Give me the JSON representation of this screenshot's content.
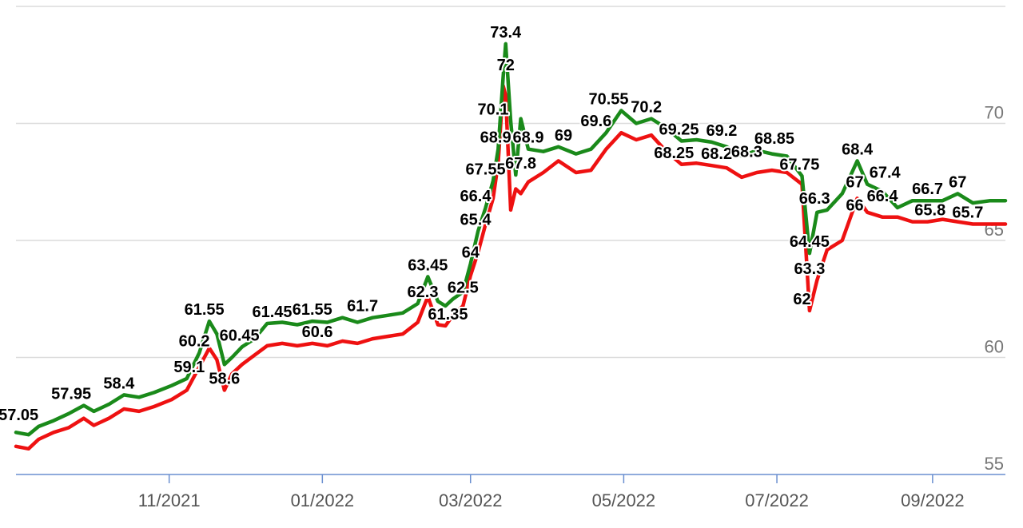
{
  "chart_data": {
    "type": "line",
    "x_start": "2021-09-01",
    "x_end": "2022-09-30",
    "y_ticks": [
      55,
      60,
      65,
      70
    ],
    "ylim": [
      55,
      75
    ],
    "grid": true,
    "x_ticks": [
      {
        "date": "2021-11-01",
        "label": "11/2021"
      },
      {
        "date": "2022-01-01",
        "label": "01/2022"
      },
      {
        "date": "2022-03-01",
        "label": "03/2022"
      },
      {
        "date": "2022-05-01",
        "label": "05/2022"
      },
      {
        "date": "2022-07-01",
        "label": "07/2022"
      },
      {
        "date": "2022-09-01",
        "label": "09/2022"
      }
    ],
    "colors": {
      "upper": "#1a8a1a",
      "lower": "#ee1111"
    },
    "series": [
      {
        "key": "upper",
        "color": "#1a8a1a",
        "points": [
          [
            "2021-09-01",
            56.8
          ],
          [
            "2021-09-06",
            56.7
          ],
          [
            "2021-09-10",
            57.05
          ],
          [
            "2021-09-16",
            57.3
          ],
          [
            "2021-09-22",
            57.6
          ],
          [
            "2021-09-28",
            57.95
          ],
          [
            "2021-10-02",
            57.7
          ],
          [
            "2021-10-08",
            58.0
          ],
          [
            "2021-10-14",
            58.4
          ],
          [
            "2021-10-20",
            58.3
          ],
          [
            "2021-10-26",
            58.5
          ],
          [
            "2021-11-02",
            58.8
          ],
          [
            "2021-11-08",
            59.1
          ],
          [
            "2021-11-13",
            60.2
          ],
          [
            "2021-11-17",
            61.55
          ],
          [
            "2021-11-20",
            61.0
          ],
          [
            "2021-11-23",
            59.7
          ],
          [
            "2021-11-26",
            60.0
          ],
          [
            "2021-11-30",
            60.45
          ],
          [
            "2021-12-05",
            60.8
          ],
          [
            "2021-12-10",
            61.45
          ],
          [
            "2021-12-16",
            61.5
          ],
          [
            "2021-12-22",
            61.4
          ],
          [
            "2021-12-28",
            61.55
          ],
          [
            "2022-01-03",
            61.5
          ],
          [
            "2022-01-09",
            61.7
          ],
          [
            "2022-01-15",
            61.5
          ],
          [
            "2022-01-21",
            61.7
          ],
          [
            "2022-01-27",
            61.8
          ],
          [
            "2022-02-02",
            61.9
          ],
          [
            "2022-02-08",
            62.3
          ],
          [
            "2022-02-12",
            63.45
          ],
          [
            "2022-02-16",
            62.4
          ],
          [
            "2022-02-19",
            62.2
          ],
          [
            "2022-02-22",
            62.5
          ],
          [
            "2022-02-26",
            62.8
          ],
          [
            "2022-03-01",
            64.0
          ],
          [
            "2022-03-04",
            65.4
          ],
          [
            "2022-03-07",
            66.4
          ],
          [
            "2022-03-10",
            67.55
          ],
          [
            "2022-03-12",
            68.9
          ],
          [
            "2022-03-14",
            72.0
          ],
          [
            "2022-03-15",
            73.4
          ],
          [
            "2022-03-17",
            70.1
          ],
          [
            "2022-03-19",
            67.8
          ],
          [
            "2022-03-21",
            70.2
          ],
          [
            "2022-03-24",
            68.9
          ],
          [
            "2022-03-30",
            68.8
          ],
          [
            "2022-04-05",
            69.0
          ],
          [
            "2022-04-12",
            68.7
          ],
          [
            "2022-04-18",
            68.9
          ],
          [
            "2022-04-24",
            69.6
          ],
          [
            "2022-04-30",
            70.55
          ],
          [
            "2022-05-06",
            70.0
          ],
          [
            "2022-05-12",
            70.2
          ],
          [
            "2022-05-18",
            69.8
          ],
          [
            "2022-05-24",
            69.25
          ],
          [
            "2022-05-30",
            69.3
          ],
          [
            "2022-06-05",
            69.2
          ],
          [
            "2022-06-11",
            69.0
          ],
          [
            "2022-06-17",
            68.6
          ],
          [
            "2022-06-23",
            68.85
          ],
          [
            "2022-06-29",
            68.7
          ],
          [
            "2022-07-05",
            68.6
          ],
          [
            "2022-07-11",
            67.75
          ],
          [
            "2022-07-14",
            64.45
          ],
          [
            "2022-07-17",
            66.2
          ],
          [
            "2022-07-21",
            66.3
          ],
          [
            "2022-07-27",
            67.0
          ],
          [
            "2022-08-02",
            68.4
          ],
          [
            "2022-08-06",
            67.4
          ],
          [
            "2022-08-12",
            67.1
          ],
          [
            "2022-08-18",
            66.4
          ],
          [
            "2022-08-24",
            66.7
          ],
          [
            "2022-08-30",
            66.7
          ],
          [
            "2022-09-05",
            66.7
          ],
          [
            "2022-09-11",
            67.0
          ],
          [
            "2022-09-17",
            66.6
          ],
          [
            "2022-09-24",
            66.7
          ],
          [
            "2022-09-30",
            66.7
          ]
        ]
      },
      {
        "key": "lower",
        "color": "#ee1111",
        "points": [
          [
            "2021-09-01",
            56.2
          ],
          [
            "2021-09-06",
            56.1
          ],
          [
            "2021-09-10",
            56.5
          ],
          [
            "2021-09-16",
            56.8
          ],
          [
            "2021-09-22",
            57.0
          ],
          [
            "2021-09-28",
            57.4
          ],
          [
            "2021-10-02",
            57.1
          ],
          [
            "2021-10-08",
            57.4
          ],
          [
            "2021-10-14",
            57.8
          ],
          [
            "2021-10-20",
            57.7
          ],
          [
            "2021-10-26",
            57.9
          ],
          [
            "2021-11-02",
            58.2
          ],
          [
            "2021-11-08",
            58.6
          ],
          [
            "2021-11-13",
            59.6
          ],
          [
            "2021-11-17",
            60.4
          ],
          [
            "2021-11-20",
            59.9
          ],
          [
            "2021-11-23",
            58.6
          ],
          [
            "2021-11-26",
            59.3
          ],
          [
            "2021-11-30",
            59.7
          ],
          [
            "2021-12-05",
            60.1
          ],
          [
            "2021-12-10",
            60.5
          ],
          [
            "2021-12-16",
            60.6
          ],
          [
            "2021-12-22",
            60.5
          ],
          [
            "2021-12-28",
            60.6
          ],
          [
            "2022-01-03",
            60.5
          ],
          [
            "2022-01-09",
            60.7
          ],
          [
            "2022-01-15",
            60.6
          ],
          [
            "2022-01-21",
            60.8
          ],
          [
            "2022-01-27",
            60.9
          ],
          [
            "2022-02-02",
            61.0
          ],
          [
            "2022-02-08",
            61.5
          ],
          [
            "2022-02-12",
            62.6
          ],
          [
            "2022-02-16",
            61.4
          ],
          [
            "2022-02-19",
            61.35
          ],
          [
            "2022-02-22",
            61.8
          ],
          [
            "2022-02-26",
            62.2
          ],
          [
            "2022-03-01",
            63.5
          ],
          [
            "2022-03-04",
            64.5
          ],
          [
            "2022-03-07",
            65.7
          ],
          [
            "2022-03-10",
            66.8
          ],
          [
            "2022-03-12",
            68.3
          ],
          [
            "2022-03-14",
            71.6
          ],
          [
            "2022-03-15",
            71.2
          ],
          [
            "2022-03-17",
            66.3
          ],
          [
            "2022-03-19",
            67.2
          ],
          [
            "2022-03-21",
            67.0
          ],
          [
            "2022-03-24",
            67.5
          ],
          [
            "2022-03-30",
            67.9
          ],
          [
            "2022-04-05",
            68.4
          ],
          [
            "2022-04-12",
            67.9
          ],
          [
            "2022-04-18",
            68.0
          ],
          [
            "2022-04-24",
            68.9
          ],
          [
            "2022-04-30",
            69.6
          ],
          [
            "2022-05-06",
            69.3
          ],
          [
            "2022-05-12",
            69.5
          ],
          [
            "2022-05-18",
            68.8
          ],
          [
            "2022-05-24",
            68.25
          ],
          [
            "2022-05-30",
            68.3
          ],
          [
            "2022-06-05",
            68.2
          ],
          [
            "2022-06-11",
            68.1
          ],
          [
            "2022-06-17",
            67.7
          ],
          [
            "2022-06-23",
            67.9
          ],
          [
            "2022-06-29",
            68.0
          ],
          [
            "2022-07-05",
            67.9
          ],
          [
            "2022-07-11",
            67.4
          ],
          [
            "2022-07-14",
            62.0
          ],
          [
            "2022-07-17",
            63.3
          ],
          [
            "2022-07-21",
            64.6
          ],
          [
            "2022-07-27",
            65.0
          ],
          [
            "2022-08-02",
            66.8
          ],
          [
            "2022-08-06",
            66.2
          ],
          [
            "2022-08-12",
            66.0
          ],
          [
            "2022-08-18",
            66.0
          ],
          [
            "2022-08-24",
            65.8
          ],
          [
            "2022-08-30",
            65.8
          ],
          [
            "2022-09-05",
            65.9
          ],
          [
            "2022-09-11",
            65.8
          ],
          [
            "2022-09-17",
            65.7
          ],
          [
            "2022-09-24",
            65.7
          ],
          [
            "2022-09-30",
            65.7
          ]
        ]
      }
    ],
    "data_labels": [
      {
        "date": "2021-09-02",
        "value": 57.05,
        "text": "57.05"
      },
      {
        "date": "2021-09-23",
        "value": 57.95,
        "text": "57.95"
      },
      {
        "date": "2021-10-12",
        "value": 58.4,
        "text": "58.4"
      },
      {
        "date": "2021-11-09",
        "value": 59.1,
        "text": "59.1"
      },
      {
        "date": "2021-11-11",
        "value": 60.2,
        "text": "60.2"
      },
      {
        "date": "2021-11-15",
        "value": 61.55,
        "text": "61.55"
      },
      {
        "date": "2021-11-23",
        "value": 58.6,
        "text": "58.6"
      },
      {
        "date": "2021-11-29",
        "value": 60.45,
        "text": "60.45"
      },
      {
        "date": "2021-12-12",
        "value": 61.45,
        "text": "61.45"
      },
      {
        "date": "2021-12-28",
        "value": 61.55,
        "text": "61.55"
      },
      {
        "date": "2021-12-30",
        "value": 60.6,
        "text": "60.6"
      },
      {
        "date": "2022-01-17",
        "value": 61.7,
        "text": "61.7"
      },
      {
        "date": "2022-02-12",
        "value": 63.45,
        "text": "63.45"
      },
      {
        "date": "2022-02-10",
        "value": 62.3,
        "text": "62.3"
      },
      {
        "date": "2022-02-20",
        "value": 61.35,
        "text": "61.35"
      },
      {
        "date": "2022-02-26",
        "value": 62.5,
        "text": "62.5"
      },
      {
        "date": "2022-03-01",
        "value": 64.0,
        "text": "64"
      },
      {
        "date": "2022-03-03",
        "value": 65.4,
        "text": "65.4"
      },
      {
        "date": "2022-03-03",
        "value": 66.4,
        "text": "66.4"
      },
      {
        "date": "2022-03-07",
        "value": 67.55,
        "text": "67.55"
      },
      {
        "date": "2022-03-11",
        "value": 68.9,
        "text": "68.9"
      },
      {
        "date": "2022-03-10",
        "value": 70.1,
        "text": "70.1"
      },
      {
        "date": "2022-03-15",
        "value": 72.0,
        "text": "72"
      },
      {
        "date": "2022-03-15",
        "value": 73.4,
        "text": "73.4"
      },
      {
        "date": "2022-03-24",
        "value": 68.9,
        "text": "68.9"
      },
      {
        "date": "2022-03-21",
        "value": 67.8,
        "text": "67.8"
      },
      {
        "date": "2022-04-07",
        "value": 69.0,
        "text": "69"
      },
      {
        "date": "2022-04-20",
        "value": 69.6,
        "text": "69.6"
      },
      {
        "date": "2022-04-25",
        "value": 70.55,
        "text": "70.55"
      },
      {
        "date": "2022-05-10",
        "value": 70.2,
        "text": "70.2"
      },
      {
        "date": "2022-05-23",
        "value": 69.25,
        "text": "69.25"
      },
      {
        "date": "2022-05-21",
        "value": 68.25,
        "text": "68.25"
      },
      {
        "date": "2022-06-09",
        "value": 69.2,
        "text": "69.2"
      },
      {
        "date": "2022-06-07",
        "value": 68.2,
        "text": "68.2"
      },
      {
        "date": "2022-06-19",
        "value": 68.3,
        "text": "68.3"
      },
      {
        "date": "2022-06-30",
        "value": 68.85,
        "text": "68.85"
      },
      {
        "date": "2022-07-10",
        "value": 67.75,
        "text": "67.75"
      },
      {
        "date": "2022-07-16",
        "value": 66.3,
        "text": "66.3"
      },
      {
        "date": "2022-07-14",
        "value": 64.45,
        "text": "64.45"
      },
      {
        "date": "2022-07-14",
        "value": 63.3,
        "text": "63.3"
      },
      {
        "date": "2022-07-11",
        "value": 62.0,
        "text": "62"
      },
      {
        "date": "2022-08-02",
        "value": 68.4,
        "text": "68.4"
      },
      {
        "date": "2022-08-01",
        "value": 67.0,
        "text": "67"
      },
      {
        "date": "2022-08-01",
        "value": 66.0,
        "text": "66"
      },
      {
        "date": "2022-08-13",
        "value": 67.4,
        "text": "67.4"
      },
      {
        "date": "2022-08-12",
        "value": 66.4,
        "text": "66.4"
      },
      {
        "date": "2022-08-30",
        "value": 66.7,
        "text": "66.7"
      },
      {
        "date": "2022-08-31",
        "value": 65.8,
        "text": "65.8"
      },
      {
        "date": "2022-09-11",
        "value": 67.0,
        "text": "67"
      },
      {
        "date": "2022-09-15",
        "value": 65.7,
        "text": "65.7"
      }
    ]
  }
}
